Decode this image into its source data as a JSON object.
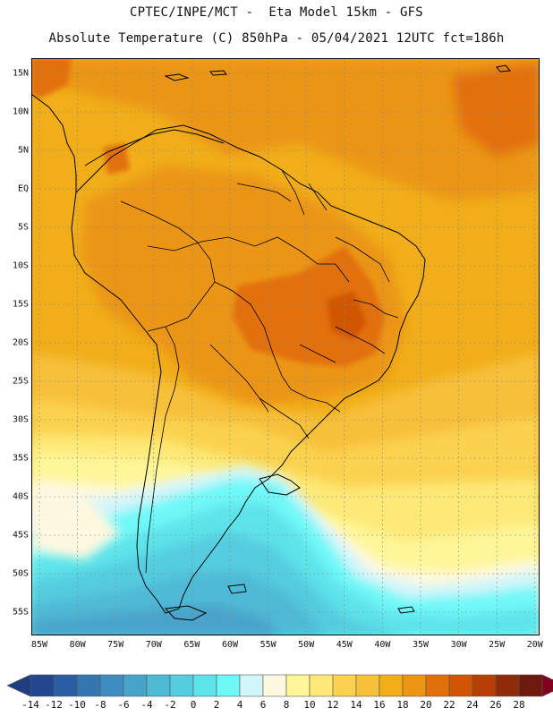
{
  "title": {
    "line1": "CPTEC/INPE/MCT -  Eta Model 15km - GFS",
    "line2": "Absolute Temperature (C) 850hPa - 05/04/2021 12UTC fct=186h"
  },
  "map": {
    "lat_labels": [
      "15N",
      "10N",
      "5N",
      "EQ",
      "5S",
      "10S",
      "15S",
      "20S",
      "25S",
      "30S",
      "35S",
      "40S",
      "45S",
      "50S",
      "55S"
    ],
    "lon_labels": [
      "85W",
      "80W",
      "75W",
      "70W",
      "65W",
      "60W",
      "55W",
      "50W",
      "45W",
      "40W",
      "35W",
      "30W",
      "25W",
      "20W"
    ]
  },
  "colorbar": {
    "unit": "C",
    "labels": [
      "-14",
      "-12",
      "-10",
      "-8",
      "-6",
      "-4",
      "-2",
      "0",
      "2",
      "4",
      "6",
      "8",
      "10",
      "12",
      "14",
      "16",
      "18",
      "20",
      "22",
      "24",
      "26",
      "28"
    ],
    "colors": [
      "#23478f",
      "#2a5ea3",
      "#3575b0",
      "#3f8dc0",
      "#48a3cb",
      "#4fbad6",
      "#55ccdf",
      "#5de3ea",
      "#6ff8f8",
      "#d2f5fa",
      "#fff8e0",
      "#fff69a",
      "#fde978",
      "#fbd24f",
      "#f7c03a",
      "#f1ae1a",
      "#eb9512",
      "#e2700a",
      "#d05606",
      "#b63f04",
      "#8e2c0a",
      "#6e1a0e"
    ],
    "under_color": "#1f3e82",
    "over_color": "#800020"
  }
}
